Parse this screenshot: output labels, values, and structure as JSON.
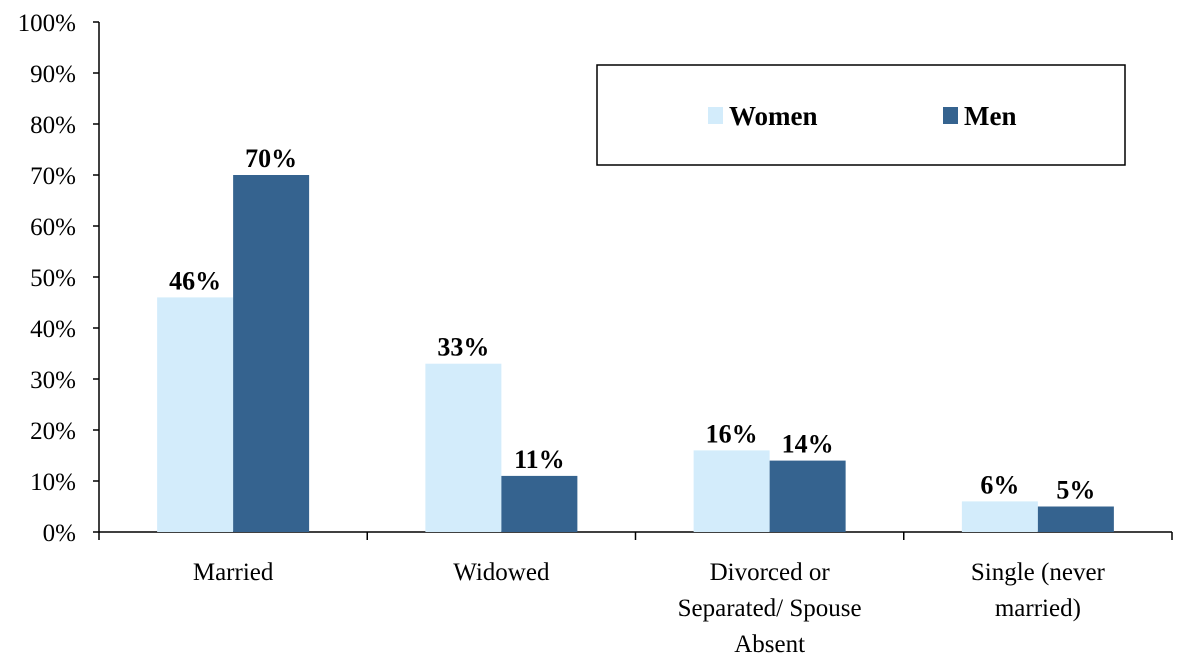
{
  "chart_data": {
    "type": "bar",
    "categories": [
      [
        "Married"
      ],
      [
        "Widowed"
      ],
      [
        "Divorced or",
        "Separated/ Spouse",
        "Absent"
      ],
      [
        "Single (never",
        "married)"
      ]
    ],
    "series": [
      {
        "name": "Women",
        "color": "#d3ecfb",
        "values": [
          46,
          33,
          16,
          6
        ]
      },
      {
        "name": "Men",
        "color": "#35638f",
        "values": [
          70,
          11,
          14,
          5
        ]
      }
    ],
    "data_labels": [
      [
        "46%",
        "33%",
        "16%",
        "6%"
      ],
      [
        "70%",
        "11%",
        "14%",
        "5%"
      ]
    ],
    "y_ticks": [
      "0%",
      "10%",
      "20%",
      "30%",
      "40%",
      "50%",
      "60%",
      "70%",
      "80%",
      "90%",
      "100%"
    ],
    "ylim": [
      0,
      100
    ],
    "grid": false,
    "legend_position": "top-right",
    "title": "",
    "xlabel": "",
    "ylabel": ""
  }
}
